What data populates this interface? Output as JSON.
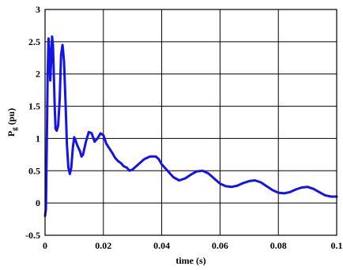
{
  "chart_data": {
    "type": "line",
    "title": "",
    "xlabel": "time (s)",
    "ylabel_main": "P",
    "ylabel_sub": "g",
    "ylabel_rest": " (pu)",
    "xlim": [
      0,
      0.1
    ],
    "ylim": [
      -0.5,
      3
    ],
    "x_ticks": [
      0,
      0.02,
      0.04,
      0.06,
      0.08,
      0.1
    ],
    "x_tick_labels": [
      "0",
      "0.02",
      "0.04",
      "0.06",
      "0.08",
      "0.1"
    ],
    "y_ticks": [
      -0.5,
      0,
      0.5,
      1,
      1.5,
      2,
      2.5,
      3
    ],
    "y_tick_labels": [
      "-0.5",
      "0",
      "0.5",
      "1",
      "1.5",
      "2",
      "2.5",
      "3"
    ],
    "grid": true,
    "series": [
      {
        "color": "#1414e6",
        "x": [
          0,
          0.0003,
          0.0006,
          0.0009,
          0.0012,
          0.0015,
          0.0018,
          0.0021,
          0.0024,
          0.0027,
          0.003,
          0.0033,
          0.0036,
          0.004,
          0.0045,
          0.005,
          0.0055,
          0.006,
          0.0065,
          0.007,
          0.0075,
          0.008,
          0.0085,
          0.009,
          0.0095,
          0.01,
          0.0105,
          0.011,
          0.0115,
          0.012,
          0.0125,
          0.013,
          0.014,
          0.015,
          0.016,
          0.017,
          0.018,
          0.019,
          0.02,
          0.021,
          0.022,
          0.023,
          0.024,
          0.025,
          0.026,
          0.027,
          0.028,
          0.029,
          0.03,
          0.032,
          0.034,
          0.036,
          0.038,
          0.039,
          0.04,
          0.042,
          0.044,
          0.046,
          0.048,
          0.05,
          0.052,
          0.054,
          0.056,
          0.058,
          0.06,
          0.062,
          0.064,
          0.066,
          0.068,
          0.07,
          0.072,
          0.074,
          0.076,
          0.078,
          0.08,
          0.082,
          0.084,
          0.086,
          0.088,
          0.09,
          0.092,
          0.094,
          0.096,
          0.098,
          0.1
        ],
        "y": [
          -0.2,
          -0.1,
          0.9,
          2.0,
          2.55,
          2.35,
          1.9,
          2.2,
          2.58,
          2.45,
          2.0,
          1.5,
          1.15,
          1.12,
          1.2,
          1.6,
          2.3,
          2.45,
          2.2,
          1.6,
          0.9,
          0.55,
          0.45,
          0.55,
          0.85,
          1.02,
          0.97,
          0.9,
          0.85,
          0.8,
          0.72,
          0.75,
          0.95,
          1.1,
          1.08,
          0.95,
          1.0,
          1.08,
          1.05,
          0.92,
          0.85,
          0.78,
          0.7,
          0.65,
          0.62,
          0.57,
          0.55,
          0.5,
          0.52,
          0.6,
          0.68,
          0.72,
          0.72,
          0.68,
          0.6,
          0.5,
          0.4,
          0.35,
          0.38,
          0.44,
          0.49,
          0.5,
          0.46,
          0.38,
          0.3,
          0.26,
          0.25,
          0.27,
          0.31,
          0.34,
          0.35,
          0.32,
          0.26,
          0.2,
          0.16,
          0.15,
          0.17,
          0.21,
          0.24,
          0.25,
          0.22,
          0.17,
          0.12,
          0.1,
          0.1
        ]
      }
    ]
  }
}
